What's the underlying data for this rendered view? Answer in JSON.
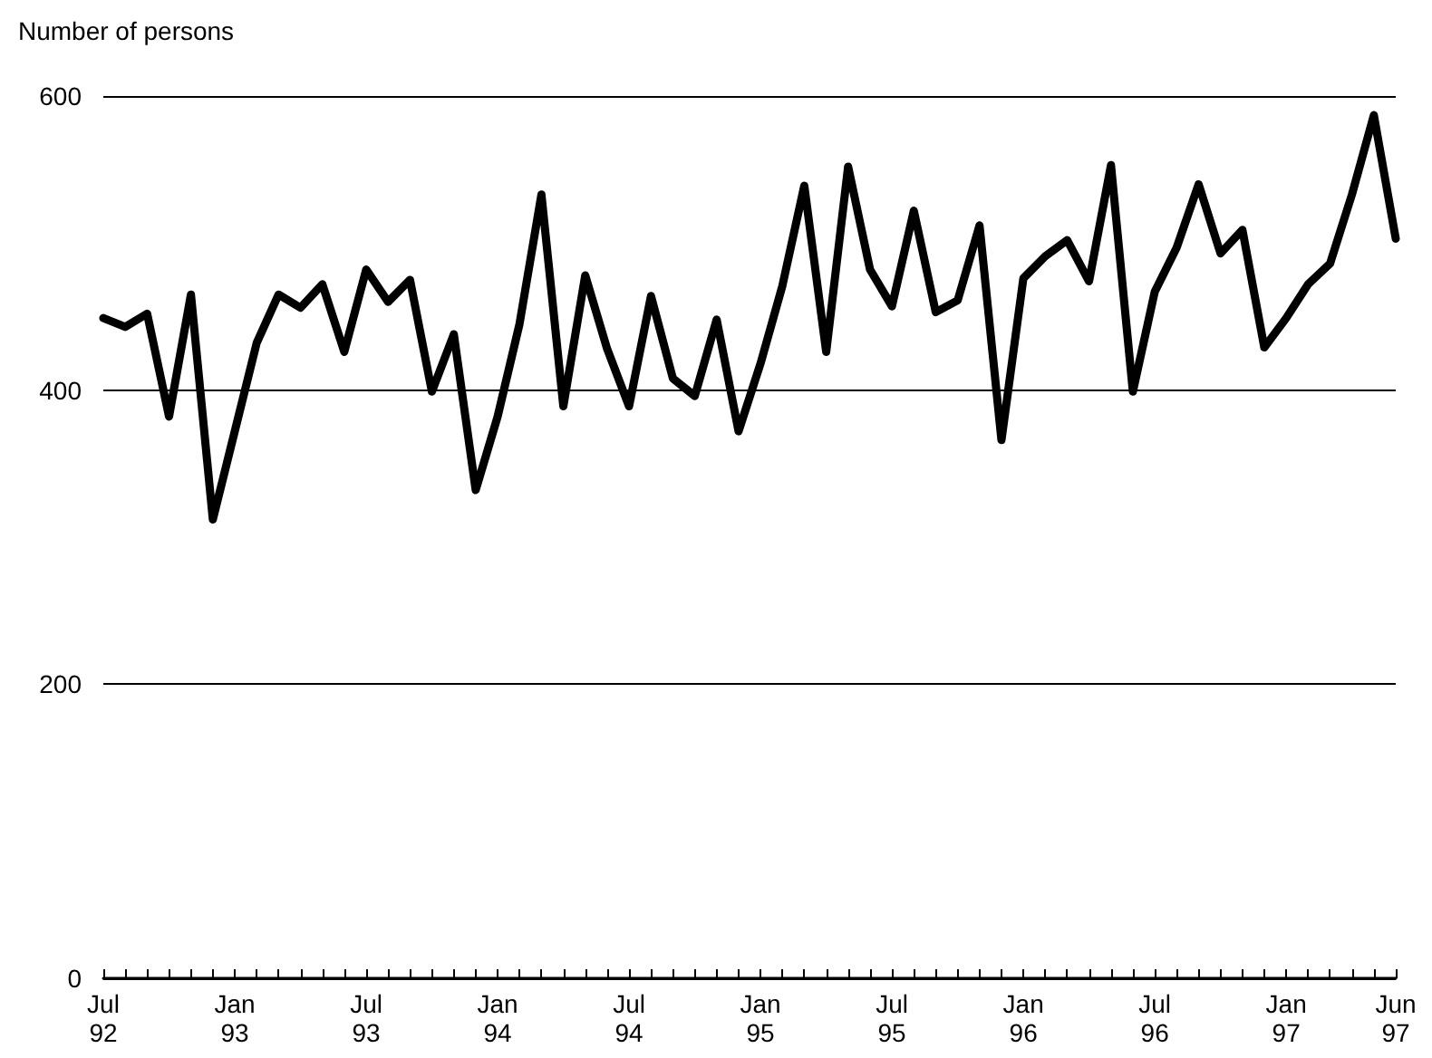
{
  "chart_data": {
    "type": "line",
    "ylabel": "Number of persons",
    "categories": [
      "Jul\n92",
      null,
      null,
      null,
      null,
      null,
      "Jan\n93",
      null,
      null,
      null,
      null,
      null,
      "Jul\n93",
      null,
      null,
      null,
      null,
      null,
      "Jan\n94",
      null,
      null,
      null,
      null,
      null,
      "Jul\n94",
      null,
      null,
      null,
      null,
      null,
      "Jan\n95",
      null,
      null,
      null,
      null,
      null,
      "Jul\n95",
      null,
      null,
      null,
      null,
      null,
      "Jan\n96",
      null,
      null,
      null,
      null,
      null,
      "Jul\n96",
      null,
      null,
      null,
      null,
      null,
      "Jan\n97",
      null,
      null,
      null,
      null,
      "Jun\n97"
    ],
    "series": [
      {
        "color": "#000000",
        "values": [
          449,
          443,
          452,
          382,
          465,
          312,
          372,
          432,
          465,
          456,
          472,
          426,
          482,
          460,
          475,
          399,
          438,
          332,
          382,
          445,
          533,
          389,
          478,
          428,
          389,
          464,
          408,
          396,
          448,
          372,
          418,
          471,
          539,
          426,
          552,
          482,
          457,
          522,
          453,
          461,
          512,
          366,
          476,
          491,
          502,
          474,
          553,
          399,
          467,
          497,
          540,
          493,
          509,
          429,
          449,
          472,
          486,
          533,
          587,
          503
        ]
      }
    ],
    "ylim": [
      0,
      600
    ],
    "yticks": [
      0,
      200,
      400,
      600
    ],
    "grid": "y",
    "marker": "none",
    "line_style": "solid"
  }
}
